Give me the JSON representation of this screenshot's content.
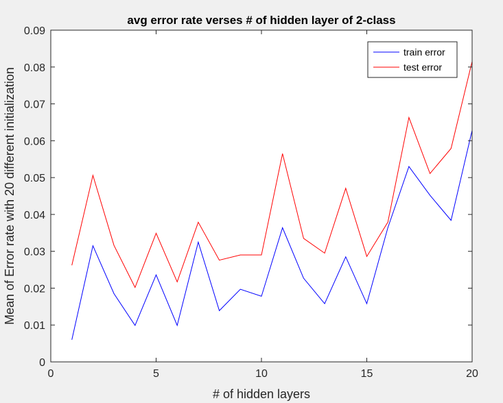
{
  "figure": {
    "background": "#f0f0f0",
    "axes_background": "#ffffff"
  },
  "chart_data": {
    "type": "line",
    "title": "avg error rate verses # of hidden layer of 2-class",
    "xlabel": "# of hidden layers",
    "ylabel": "Mean of Error rate with 20 different initialization",
    "xlim": [
      0,
      20
    ],
    "ylim": [
      0,
      0.09
    ],
    "xticks": [
      0,
      5,
      10,
      15,
      20
    ],
    "xtick_labels": [
      "0",
      "5",
      "10",
      "15",
      "20"
    ],
    "yticks": [
      0,
      0.01,
      0.02,
      0.03,
      0.04,
      0.05,
      0.06,
      0.07,
      0.08,
      0.09
    ],
    "ytick_labels": [
      "0",
      "0.01",
      "0.02",
      "0.03",
      "0.04",
      "0.05",
      "0.06",
      "0.07",
      "0.08",
      "0.09"
    ],
    "grid": false,
    "legend_position": "top-right",
    "x": [
      1,
      2,
      3,
      4,
      5,
      6,
      7,
      8,
      9,
      10,
      11,
      12,
      13,
      14,
      15,
      16,
      17,
      18,
      19,
      20
    ],
    "series": [
      {
        "name": "train error",
        "color": "#0000ff",
        "values": [
          0.006,
          0.0315,
          0.0185,
          0.0099,
          0.0236,
          0.0099,
          0.0325,
          0.0139,
          0.0197,
          0.0178,
          0.0364,
          0.0227,
          0.0158,
          0.0285,
          0.0158,
          0.0364,
          0.053,
          0.0452,
          0.0384,
          0.0628
        ]
      },
      {
        "name": "test error",
        "color": "#ff0000",
        "values": [
          0.0262,
          0.0506,
          0.0316,
          0.0202,
          0.0349,
          0.0217,
          0.0379,
          0.0276,
          0.029,
          0.029,
          0.0565,
          0.0335,
          0.0295,
          0.0471,
          0.0286,
          0.0379,
          0.0663,
          0.0511,
          0.0579,
          0.0815
        ]
      }
    ]
  }
}
